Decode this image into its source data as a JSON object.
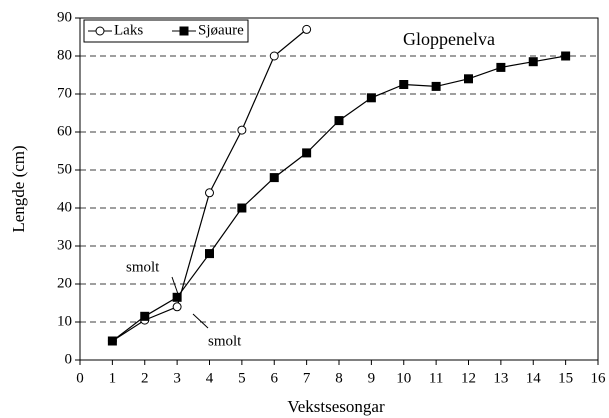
{
  "chart_data": {
    "type": "line",
    "annotations": [
      {
        "text": "Gloppenelva"
      },
      {
        "text": "smolt"
      },
      {
        "text": "smolt"
      }
    ],
    "x_label": "Vekstsesongar",
    "y_label": "Lengde (cm)",
    "series": [
      {
        "name": "Laks",
        "color": "#000000",
        "marker": "open-circle",
        "x": [
          1,
          2,
          3,
          4,
          5,
          6,
          7
        ],
        "values": [
          5,
          10.5,
          14,
          44,
          60.5,
          80,
          87
        ]
      },
      {
        "name": "Sjøaure",
        "color": "#000000",
        "marker": "filled-square",
        "x": [
          1,
          2,
          3,
          4,
          5,
          6,
          7,
          8,
          9,
          10,
          11,
          12,
          13,
          14,
          15
        ],
        "values": [
          5,
          11.5,
          16.5,
          28,
          40,
          48,
          54.5,
          63,
          69,
          72.5,
          72,
          74,
          77,
          78.5,
          80
        ]
      }
    ],
    "xlim": [
      0,
      16
    ],
    "xticks": [
      0,
      1,
      2,
      3,
      4,
      5,
      6,
      7,
      8,
      9,
      10,
      11,
      12,
      13,
      14,
      15,
      16
    ],
    "ylim": [
      0,
      90
    ],
    "yticks": [
      0,
      10,
      20,
      30,
      40,
      50,
      60,
      70,
      80,
      90
    ],
    "grid": true,
    "legend": "upper left"
  }
}
